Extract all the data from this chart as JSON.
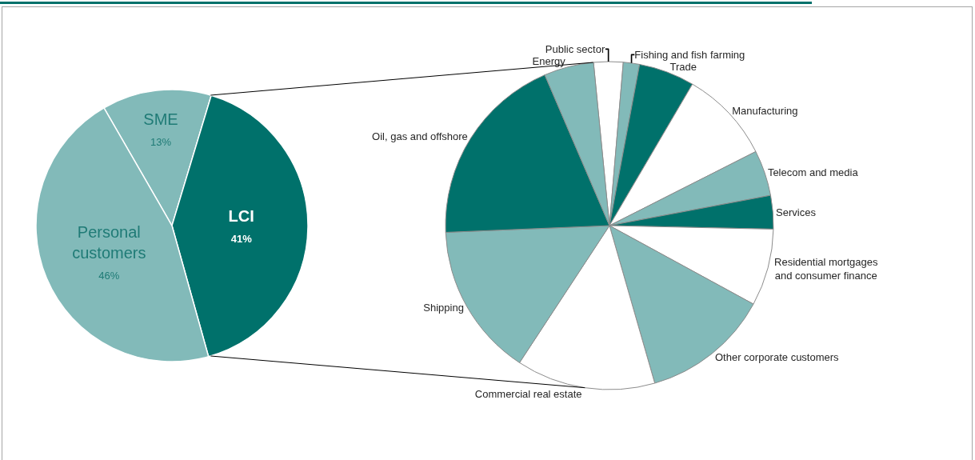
{
  "chart_data": [
    {
      "type": "pie",
      "categories": [
        "SME",
        "LCI",
        "Personal customers"
      ],
      "values": [
        13,
        41,
        46
      ],
      "value_labels": [
        "13%",
        "41%",
        "46%"
      ],
      "colors": [
        "#82bab9",
        "#00716b",
        "#82bab9"
      ]
    },
    {
      "type": "pie",
      "categories": [
        "Public sector",
        "Fishing and fish farming",
        "Trade",
        "Manufacturing",
        "Telecom and media",
        "Services",
        "Residential mortgages and consumer finance",
        "Other corporate customers",
        "Commercial real estate",
        "Shipping",
        "Oil, gas and offshore",
        "Energy"
      ],
      "values": [
        2.9,
        1.6,
        5.5,
        9.1,
        4.5,
        3.3,
        7.6,
        12.6,
        13.7,
        15.1,
        19.2,
        4.9
      ],
      "colors": [
        "#ffffff",
        "#82bab9",
        "#00716b",
        "#ffffff",
        "#82bab9",
        "#00716b",
        "#ffffff",
        "#82bab9",
        "#ffffff",
        "#82bab9",
        "#00716b",
        "#82bab9"
      ]
    }
  ]
}
